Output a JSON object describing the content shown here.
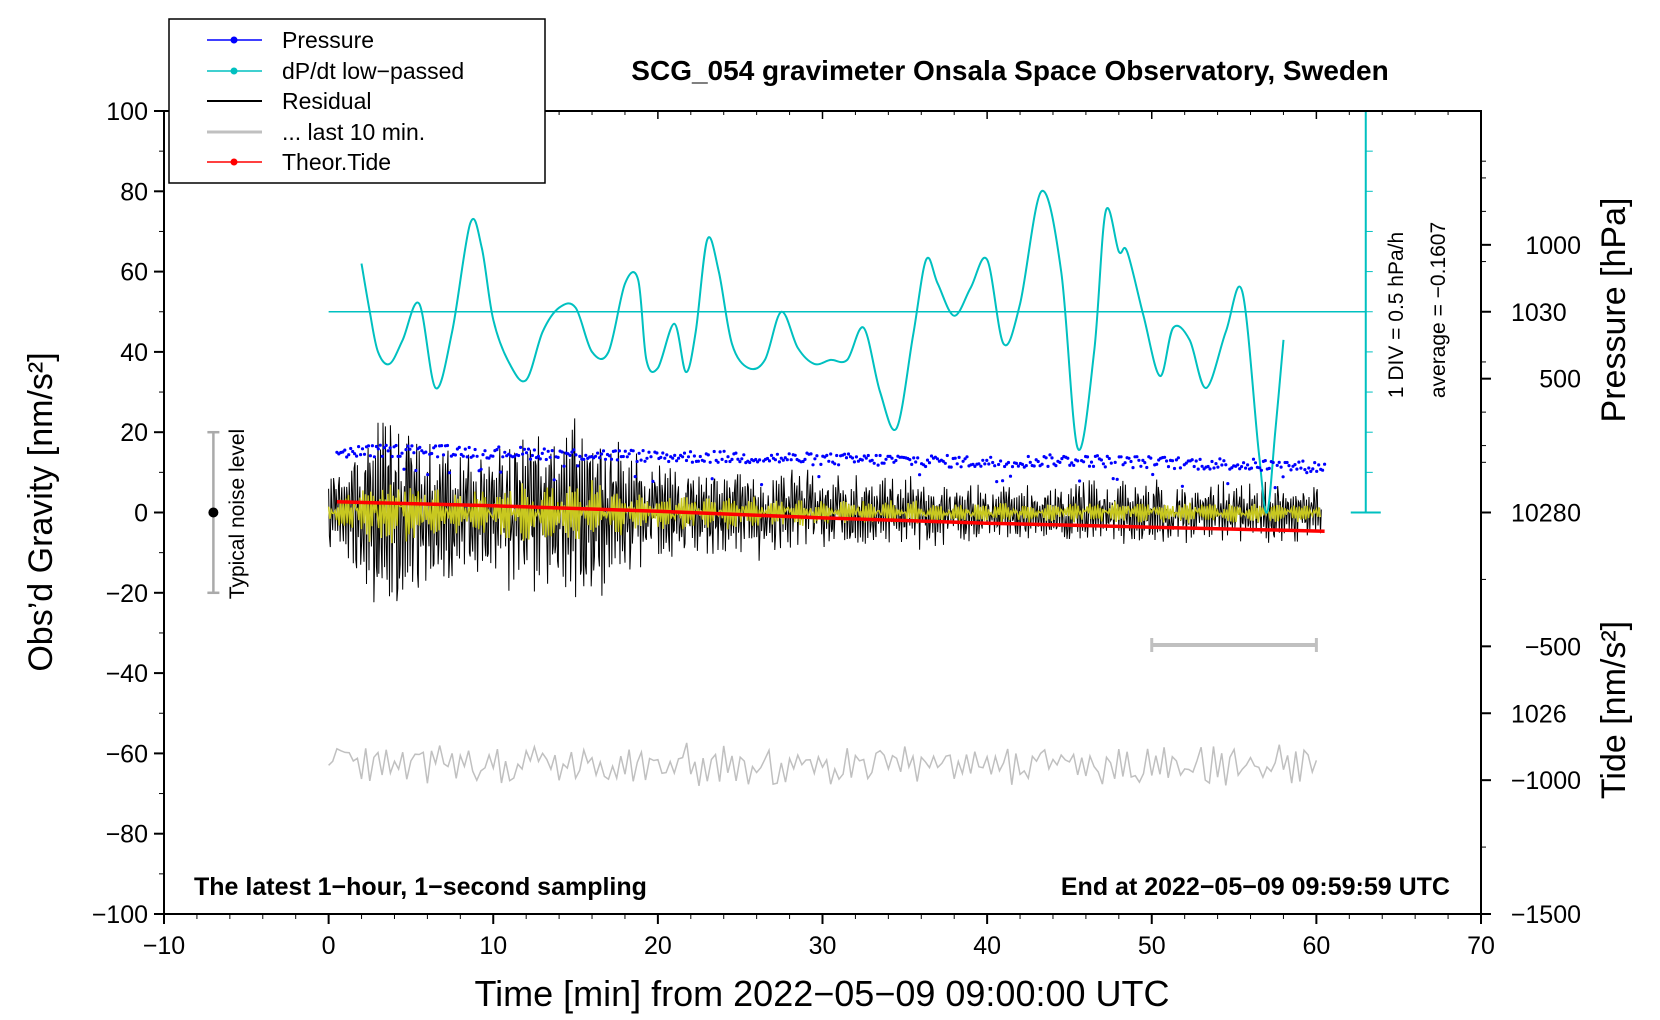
{
  "chart_data": {
    "type": "line",
    "title": "SCG_054 gravimeter Onsala Space Observatory, Sweden",
    "xlabel": "Time [min] from 2022−05−09 09:00:00 UTC",
    "ylabel_left": "Obs’d Gravity [nm/s²]",
    "ylabel_pressure": "Pressure [hPa]",
    "ylabel_tide": "Tide [nm/s²]",
    "xlim": [
      -10,
      70
    ],
    "ylim": [
      -100,
      100
    ],
    "pressure_lim": [
      1024,
      1032
    ],
    "tide_lim": [
      -1500,
      1500
    ],
    "x_ticks": [
      "−10",
      "0",
      "10",
      "20",
      "30",
      "40",
      "50",
      "60",
      "70"
    ],
    "y_ticks": [
      "100",
      "80",
      "60",
      "40",
      "20",
      "0",
      "−20",
      "−40",
      "−60",
      "−80",
      "−100"
    ],
    "pressure_ticks": [
      "1030",
      "1028",
      "1026"
    ],
    "tide_ticks": [
      "1000",
      "500",
      "0",
      "−500",
      "−1000",
      "−1500"
    ],
    "legend": {
      "position": "top-left",
      "items": [
        {
          "label": "Pressure",
          "color": "#0000ff",
          "marker": true
        },
        {
          "label": "dP/dt low−passed",
          "color": "#00c0c0",
          "marker": true
        },
        {
          "label": "Residual",
          "color": "#000000",
          "marker": false
        },
        {
          "label": "... last 10 min.",
          "color": "#c0c0c0",
          "marker": false
        },
        {
          "label": "Theor.Tide",
          "color": "#ff0000",
          "marker": true
        }
      ]
    },
    "annotations": {
      "bottom_left": "The latest 1−hour, 1−second sampling",
      "bottom_right": "End at 2022−05−09 09:59:59 UTC",
      "noise": "Typical noise level",
      "div_scale": "1 DIV = 0.5 hPa/h",
      "average": "average = −0.1607"
    },
    "colors": {
      "pressure": "#0000ff",
      "dpdt": "#00c0c0",
      "residual": "#000000",
      "yellow": "#c8c820",
      "last10": "#c0c0c0",
      "tide": "#ff0000",
      "noise_bar": "#aaaaaa"
    },
    "noise_level": {
      "x": -7,
      "center": 0,
      "low": -20,
      "high": 20
    },
    "last10_range": [
      50,
      60
    ],
    "dpdt_zero_level_nm": 50,
    "dpdt_div_nm": 10,
    "dpdt_scale_range_nm": [
      0,
      100
    ],
    "pressure_series": {
      "x": [
        0.5,
        5,
        10,
        15,
        20,
        25,
        30,
        35,
        40,
        45,
        50,
        55,
        60.5
      ],
      "y": [
        1028.6,
        1028.62,
        1028.6,
        1028.58,
        1028.56,
        1028.55,
        1028.53,
        1028.52,
        1028.5,
        1028.52,
        1028.5,
        1028.48,
        1028.45
      ]
    },
    "dpdt_series": {
      "x": [
        2,
        2.5,
        3,
        3.7,
        4.5,
        5.5,
        6.5,
        7.5,
        8.6,
        9.3,
        10,
        11,
        12,
        13,
        14,
        15,
        16,
        17,
        18,
        18.8,
        19.3,
        20,
        21,
        21.7,
        22.3,
        23,
        23.7,
        24.5,
        25.5,
        26.5,
        27.5,
        28.5,
        29.5,
        30.5,
        31.5,
        32.5,
        33.5,
        34.5,
        35.5,
        36.3,
        37,
        38,
        39,
        40,
        41,
        42,
        43.3,
        44.5,
        45.5,
        46.5,
        47.2,
        48,
        48.5,
        49.5,
        50.5,
        51.3,
        52.3,
        53.3,
        54.5,
        55.5,
        56.5,
        57,
        57.5,
        58
      ],
      "y": [
        62,
        50,
        40,
        37,
        43,
        52,
        31,
        45,
        72,
        66,
        48,
        37,
        33,
        45,
        51,
        51,
        40,
        40,
        57,
        58,
        38,
        36,
        47,
        35,
        45,
        68,
        60,
        42,
        36,
        38,
        50,
        41,
        37,
        38,
        38,
        46,
        30,
        21,
        44,
        63,
        57,
        49,
        56,
        63,
        42,
        52,
        80,
        60,
        16,
        40,
        75,
        65,
        65,
        49,
        34,
        46,
        43,
        31,
        45,
        55,
        15,
        0,
        20,
        43
      ]
    },
    "residual_amplitude_profile": {
      "x": [
        0,
        2,
        3,
        5,
        7,
        9,
        11,
        12,
        14,
        16,
        18,
        20,
        25,
        30,
        35,
        40,
        45,
        50,
        55,
        60
      ],
      "amp": [
        10,
        18,
        30,
        22,
        18,
        16,
        20,
        22,
        22,
        24,
        16,
        13,
        12,
        10,
        9,
        7,
        8,
        8,
        8,
        7
      ]
    },
    "tide_series": {
      "x": [
        0.5,
        10,
        20,
        30,
        40,
        50,
        60.5
      ],
      "y": [
        40,
        25,
        5,
        -20,
        -40,
        -55,
        -70
      ]
    },
    "last10_baseline_nm": -63,
    "last10_amplitude_nm": 5
  }
}
